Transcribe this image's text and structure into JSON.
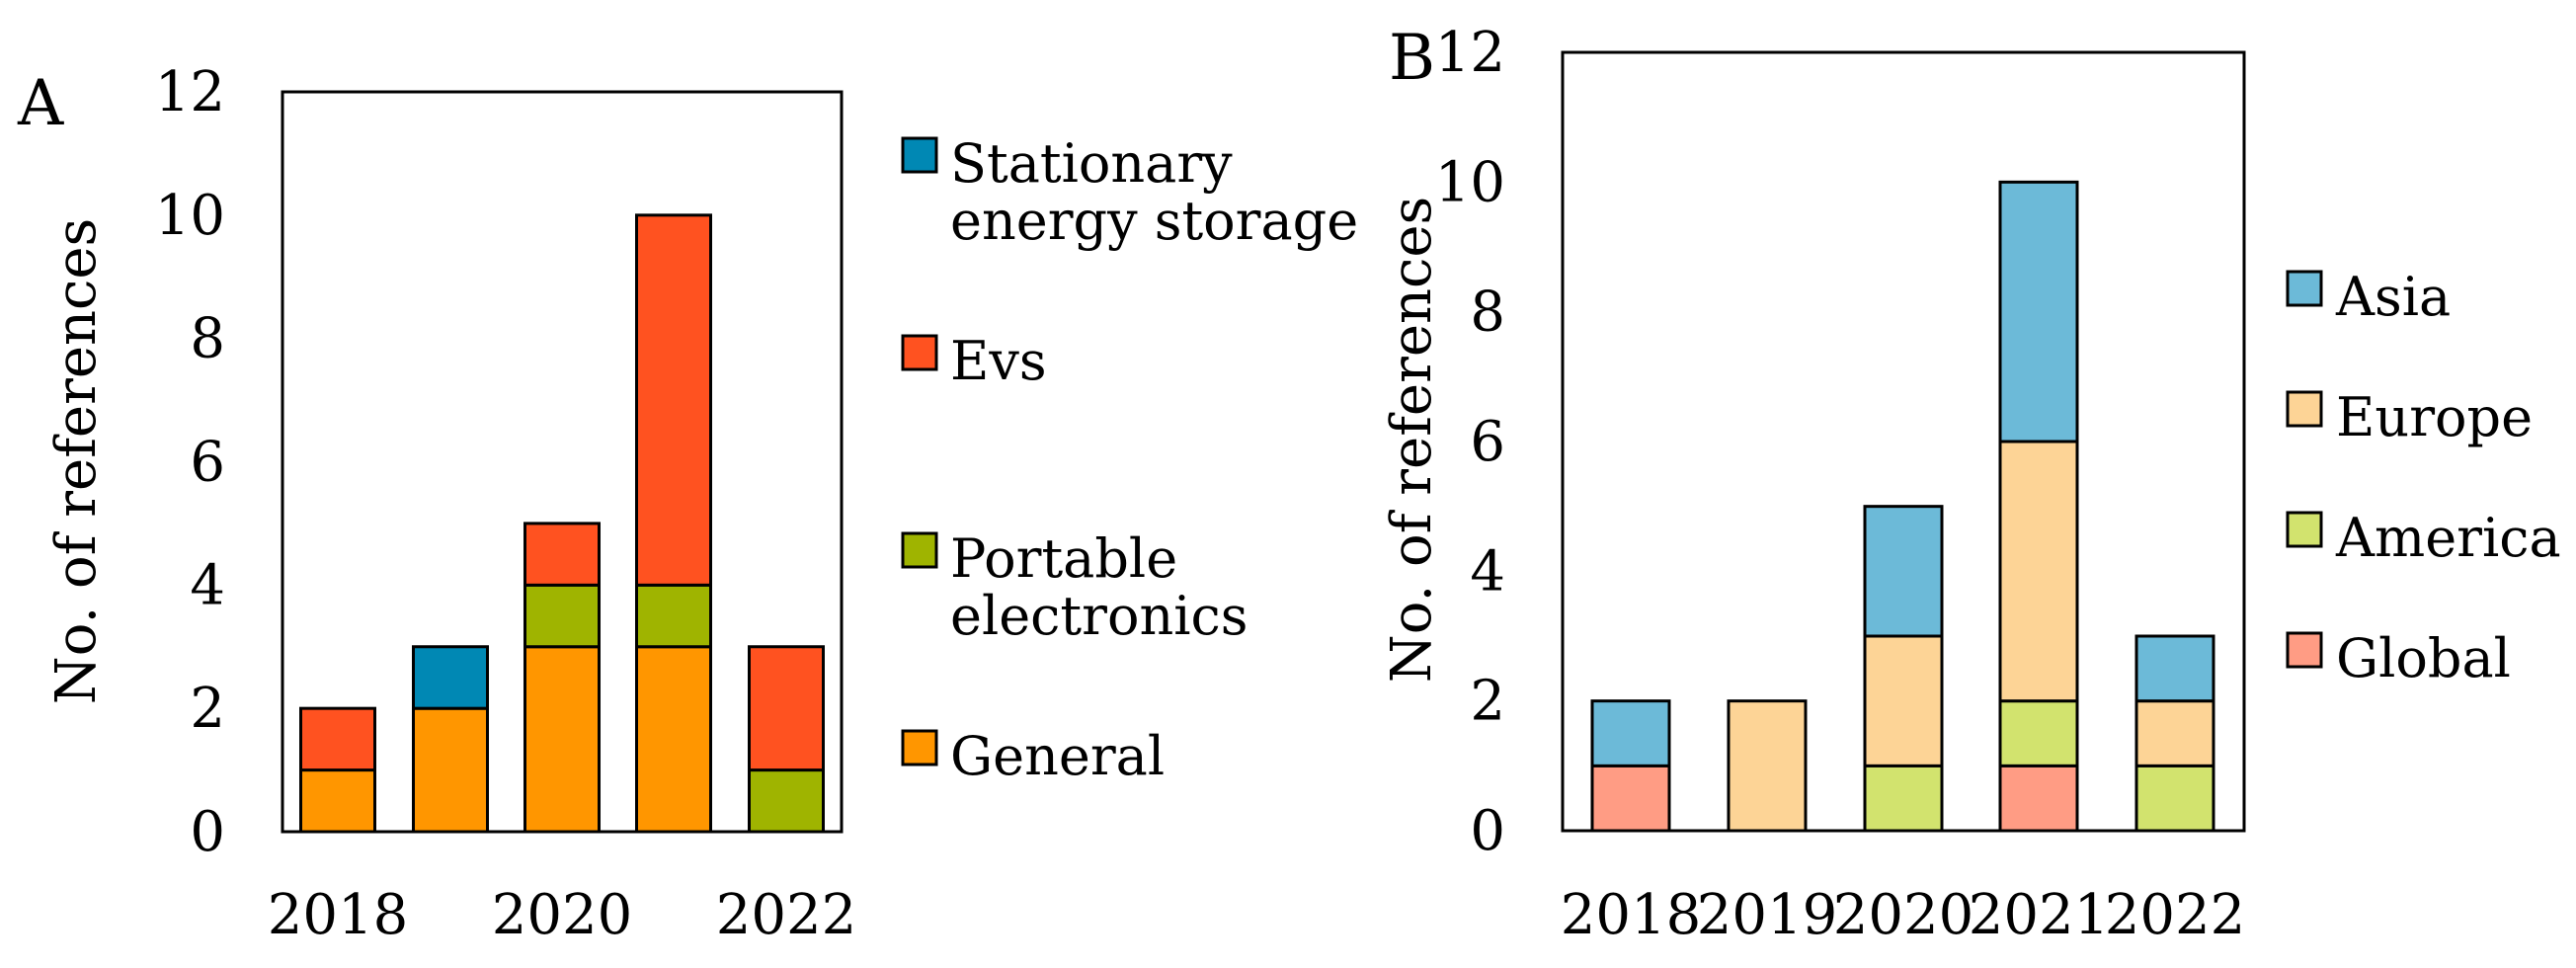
{
  "chart_data": [
    {
      "type": "bar",
      "stacked": true,
      "panel_label": "A",
      "title": "",
      "xlabel": "",
      "ylabel": "No. of references",
      "ylim": [
        0,
        12
      ],
      "yticks": [
        "0",
        "2",
        "4",
        "6",
        "8",
        "10",
        "12"
      ],
      "categories": [
        "2018",
        "2019",
        "2020",
        "2021",
        "2022"
      ],
      "xtick_labels": [
        "2018",
        "",
        "2020",
        "",
        "2022"
      ],
      "series": [
        {
          "name": "General",
          "color": "#ff9600",
          "values": [
            1,
            2,
            3,
            3,
            0
          ]
        },
        {
          "name": "Portable electronics",
          "color": "#9fb400",
          "values": [
            0,
            0,
            1,
            1,
            1
          ]
        },
        {
          "name": "Evs",
          "color": "#ff5220",
          "values": [
            1,
            0,
            1,
            6,
            2
          ]
        },
        {
          "name": "Stationary energy storage",
          "color": "#0088b4",
          "values": [
            0,
            1,
            0,
            0,
            0
          ]
        }
      ],
      "legend": {
        "placement": "right",
        "order": [
          3,
          2,
          1,
          0
        ],
        "entries": [
          {
            "lines": [
              "Stationary",
              "energy storage"
            ]
          },
          {
            "lines": [
              "Evs"
            ]
          },
          {
            "lines": [
              "Portable",
              "electronics"
            ]
          },
          {
            "lines": [
              "General"
            ]
          }
        ]
      }
    },
    {
      "type": "bar",
      "stacked": true,
      "panel_label": "B",
      "title": "",
      "xlabel": "",
      "ylabel": "No. of references",
      "ylim": [
        0,
        12
      ],
      "yticks": [
        "0",
        "2",
        "4",
        "6",
        "8",
        "10",
        "12"
      ],
      "categories": [
        "2018",
        "2019",
        "2020",
        "2021",
        "2022"
      ],
      "xtick_labels": [
        "2018",
        "2019",
        "2020",
        "2021",
        "2022"
      ],
      "series": [
        {
          "name": "Global",
          "color": "#ff9c84",
          "values": [
            1,
            0,
            0,
            1,
            0
          ]
        },
        {
          "name": "America",
          "color": "#d2e36e",
          "values": [
            0,
            0,
            1,
            1,
            1
          ]
        },
        {
          "name": "Europe",
          "color": "#fdd496",
          "values": [
            0,
            2,
            2,
            4,
            1
          ]
        },
        {
          "name": "Asia",
          "color": "#6cbad8",
          "values": [
            1,
            0,
            2,
            4,
            1
          ]
        }
      ],
      "legend": {
        "placement": "right",
        "order": [
          3,
          2,
          1,
          0
        ],
        "entries": [
          {
            "lines": [
              "Asia"
            ]
          },
          {
            "lines": [
              "Europe"
            ]
          },
          {
            "lines": [
              "America"
            ]
          },
          {
            "lines": [
              "Global"
            ]
          }
        ]
      }
    }
  ]
}
